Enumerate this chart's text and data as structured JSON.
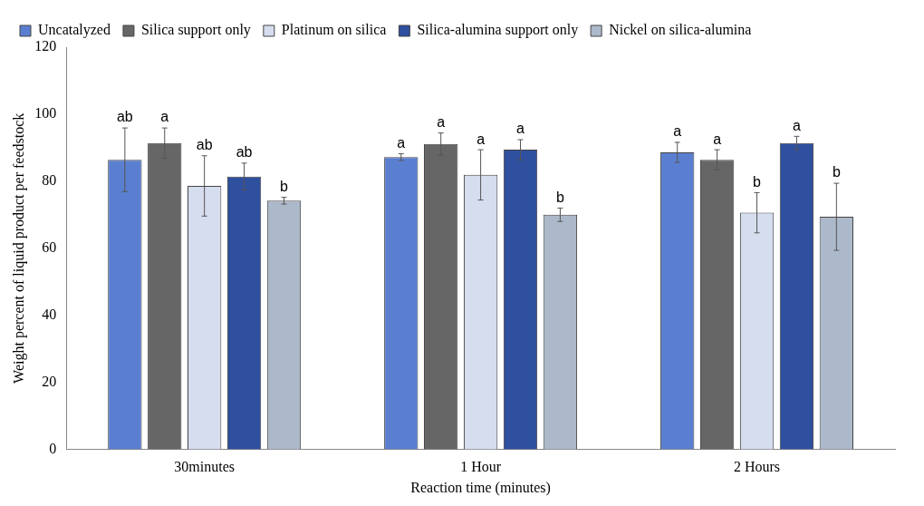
{
  "chart_data": {
    "type": "bar",
    "xlabel": "Reaction time (minutes)",
    "ylabel": "Weight percent of liquid product per feedstock",
    "categories": [
      "30minutes",
      "1 Hour",
      "2 Hours"
    ],
    "series": [
      {
        "name": "Uncatalyzed",
        "color": "#5b7fd0",
        "values": [
          86.4,
          87.2,
          88.6
        ],
        "errors": [
          9.5,
          1,
          3
        ],
        "value_labels": [
          "ab",
          "a",
          "a"
        ]
      },
      {
        "name": "Silica support only",
        "color": "#666666",
        "values": [
          91.4,
          91.1,
          86.4
        ],
        "errors": [
          4.5,
          3.3,
          3
        ],
        "value_labels": [
          "a",
          "a",
          "a"
        ]
      },
      {
        "name": "Platinum on silica",
        "color": "#d6ddef",
        "values": [
          78.6,
          81.9,
          70.6
        ],
        "errors": [
          9,
          7.5,
          6
        ],
        "value_labels": [
          "ab",
          "a",
          "b"
        ]
      },
      {
        "name": "Silica-alumina support only",
        "color": "#2f4f9f",
        "values": [
          81.4,
          89.4,
          91.4
        ],
        "errors": [
          4,
          3,
          2
        ],
        "value_labels": [
          "ab",
          "a",
          "a"
        ]
      },
      {
        "name": "Nickel on silica-alumina",
        "color": "#acb9ca",
        "values": [
          74.2,
          70,
          69.4
        ],
        "errors": [
          1,
          2,
          10
        ],
        "value_labels": [
          "b",
          "b",
          "b"
        ]
      }
    ],
    "ylim": [
      0,
      120
    ],
    "yticks": [
      0,
      20,
      40,
      60,
      80,
      100,
      120
    ],
    "grid": false,
    "legend": "top"
  }
}
